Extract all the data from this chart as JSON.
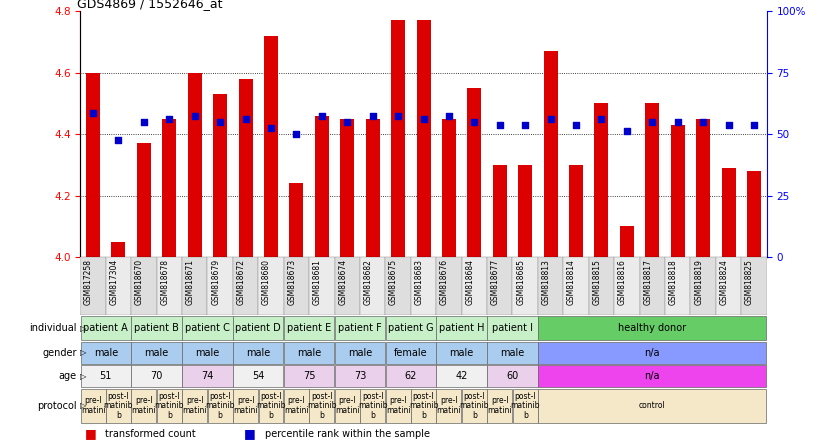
{
  "title": "GDS4869 / 1552646_at",
  "samples": [
    "GSM817258",
    "GSM817304",
    "GSM818670",
    "GSM818678",
    "GSM818671",
    "GSM818679",
    "GSM818672",
    "GSM818680",
    "GSM818673",
    "GSM818681",
    "GSM818674",
    "GSM818682",
    "GSM818675",
    "GSM818683",
    "GSM818676",
    "GSM818684",
    "GSM818677",
    "GSM818685",
    "GSM818813",
    "GSM818814",
    "GSM818815",
    "GSM818816",
    "GSM818817",
    "GSM818818",
    "GSM818819",
    "GSM818824",
    "GSM818825"
  ],
  "bar_values": [
    4.6,
    4.05,
    4.37,
    4.45,
    4.6,
    4.53,
    4.58,
    4.72,
    4.24,
    4.46,
    4.45,
    4.45,
    4.77,
    4.77,
    4.45,
    4.55,
    4.3,
    4.3,
    4.67,
    4.3,
    4.5,
    4.1,
    4.5,
    4.43,
    4.45,
    4.29,
    4.28
  ],
  "dot_values": [
    4.47,
    4.38,
    4.44,
    4.45,
    4.46,
    4.44,
    4.45,
    4.42,
    4.4,
    4.46,
    4.44,
    4.46,
    4.46,
    4.45,
    4.46,
    4.44,
    4.43,
    4.43,
    4.45,
    4.43,
    4.45,
    4.41,
    4.44,
    4.44,
    4.44,
    4.43,
    4.43
  ],
  "ymin": 4.0,
  "ymax": 4.8,
  "yticks": [
    4.0,
    4.2,
    4.4,
    4.6,
    4.8
  ],
  "bar_color": "#DD0000",
  "dot_color": "#0000CC",
  "bg_color": "#FFFFFF",
  "individual_merged": [
    [
      0,
      2,
      "patient A",
      "#C8F0C8"
    ],
    [
      2,
      4,
      "patient B",
      "#C8F0C8"
    ],
    [
      4,
      6,
      "patient C",
      "#C8F0C8"
    ],
    [
      6,
      8,
      "patient D",
      "#C8F0C8"
    ],
    [
      8,
      10,
      "patient E",
      "#C8F0C8"
    ],
    [
      10,
      12,
      "patient F",
      "#C8F0C8"
    ],
    [
      12,
      14,
      "patient G",
      "#C8F0C8"
    ],
    [
      14,
      16,
      "patient H",
      "#C8F0C8"
    ],
    [
      16,
      18,
      "patient I",
      "#C8F0C8"
    ],
    [
      18,
      27,
      "healthy donor",
      "#66CC66"
    ]
  ],
  "gender_merged": [
    [
      0,
      2,
      "male",
      "#AACCEE"
    ],
    [
      2,
      4,
      "male",
      "#AACCEE"
    ],
    [
      4,
      6,
      "male",
      "#AACCEE"
    ],
    [
      6,
      8,
      "male",
      "#AACCEE"
    ],
    [
      8,
      10,
      "male",
      "#AACCEE"
    ],
    [
      10,
      12,
      "male",
      "#AACCEE"
    ],
    [
      12,
      14,
      "female",
      "#AACCEE"
    ],
    [
      14,
      16,
      "male",
      "#AACCEE"
    ],
    [
      16,
      18,
      "male",
      "#AACCEE"
    ],
    [
      18,
      27,
      "n/a",
      "#8899FF"
    ]
  ],
  "age_merged": [
    [
      0,
      2,
      "51",
      "#F0F0F0"
    ],
    [
      2,
      4,
      "70",
      "#F0F0F0"
    ],
    [
      4,
      6,
      "74",
      "#EAD0EA"
    ],
    [
      6,
      8,
      "54",
      "#F0F0F0"
    ],
    [
      8,
      10,
      "75",
      "#EAD0EA"
    ],
    [
      10,
      12,
      "73",
      "#EAD0EA"
    ],
    [
      12,
      14,
      "62",
      "#EAD0EA"
    ],
    [
      14,
      16,
      "42",
      "#F0F0F0"
    ],
    [
      16,
      18,
      "60",
      "#EAD0EA"
    ],
    [
      18,
      27,
      "n/a",
      "#EE44EE"
    ]
  ],
  "protocol_merged": [
    [
      0,
      1,
      "pre-I\nmatini",
      "#F5E8C8"
    ],
    [
      1,
      2,
      "post-I\nmatinib\nb",
      "#F5E8C8"
    ],
    [
      2,
      3,
      "pre-I\nmatini",
      "#F5E8C8"
    ],
    [
      3,
      4,
      "post-I\nmatinib\nb",
      "#F5E8C8"
    ],
    [
      4,
      5,
      "pre-I\nmatini",
      "#F5E8C8"
    ],
    [
      5,
      6,
      "post-I\nmatinib\nb",
      "#F5E8C8"
    ],
    [
      6,
      7,
      "pre-I\nmatini",
      "#F5E8C8"
    ],
    [
      7,
      8,
      "post-I\nmatinib\nb",
      "#F5E8C8"
    ],
    [
      8,
      9,
      "pre-I\nmatini",
      "#F5E8C8"
    ],
    [
      9,
      10,
      "post-I\nmatinib\nb",
      "#F5E8C8"
    ],
    [
      10,
      11,
      "pre-I\nmatini",
      "#F5E8C8"
    ],
    [
      11,
      12,
      "post-I\nmatinib\nb",
      "#F5E8C8"
    ],
    [
      12,
      13,
      "pre-I\nmatini",
      "#F5E8C8"
    ],
    [
      13,
      14,
      "post-I\nmatinib\nb",
      "#F5E8C8"
    ],
    [
      14,
      15,
      "pre-I\nmatini",
      "#F5E8C8"
    ],
    [
      15,
      16,
      "post-I\nmatinib\nb",
      "#F5E8C8"
    ],
    [
      16,
      17,
      "pre-I\nmatini",
      "#F5E8C8"
    ],
    [
      17,
      18,
      "post-I\nmatinib\nb",
      "#F5E8C8"
    ],
    [
      18,
      27,
      "control",
      "#F5E8C8"
    ]
  ]
}
